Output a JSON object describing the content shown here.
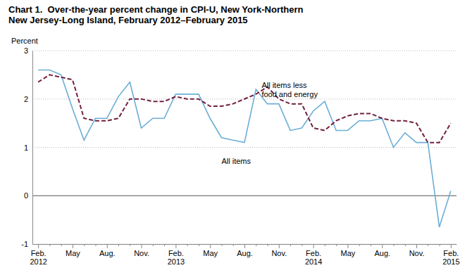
{
  "chart_data": {
    "type": "line",
    "title": "Chart 1.  Over-the-year percent change in CPI-U, New York-Northern\nNew Jersey-Long Island, February 2012–February 2015",
    "ylabel": "Percent",
    "categories": [
      "Feb.\n2012",
      null,
      null,
      "May",
      null,
      null,
      "Aug.",
      null,
      null,
      "Nov.",
      null,
      null,
      "Feb.\n2013",
      null,
      null,
      "May",
      null,
      null,
      "Aug.",
      null,
      null,
      "Nov.",
      null,
      null,
      "Feb.\n2014",
      null,
      null,
      "May",
      null,
      null,
      "Aug.",
      null,
      null,
      "Nov.",
      null,
      null,
      "Feb.\n2015"
    ],
    "series": [
      {
        "color": "#6baed6",
        "line_style": "solid",
        "values": [
          2.6,
          2.6,
          2.5,
          1.8,
          1.15,
          1.6,
          1.6,
          2.05,
          2.35,
          1.4,
          1.6,
          1.6,
          2.1,
          2.1,
          2.1,
          1.6,
          1.2,
          1.15,
          1.1,
          2.2,
          1.9,
          1.9,
          1.35,
          1.4,
          1.75,
          1.95,
          1.35,
          1.35,
          1.55,
          1.55,
          1.6,
          1.0,
          1.3,
          1.1,
          1.1,
          -0.65,
          0.1
        ]
      },
      {
        "color": "#722040",
        "line_style": "dashed",
        "values": [
          2.35,
          2.5,
          2.45,
          2.4,
          1.6,
          1.55,
          1.55,
          1.6,
          2.0,
          2.0,
          1.95,
          1.95,
          2.05,
          2.0,
          2.0,
          1.85,
          1.85,
          1.9,
          2.0,
          2.1,
          2.25,
          2.0,
          1.9,
          1.9,
          1.4,
          1.35,
          1.55,
          1.65,
          1.7,
          1.7,
          1.6,
          1.55,
          1.55,
          1.5,
          1.1,
          1.1,
          1.5
        ]
      }
    ],
    "annotations": [
      {
        "text": "All items",
        "x": 16,
        "y": 0.78
      },
      {
        "text": "All items less\nfood and energy",
        "x": 19.5,
        "y": 2.35
      }
    ],
    "ylim": [
      -1,
      3
    ],
    "yticks": [
      -1,
      0,
      1,
      2,
      3
    ],
    "grid": true
  }
}
